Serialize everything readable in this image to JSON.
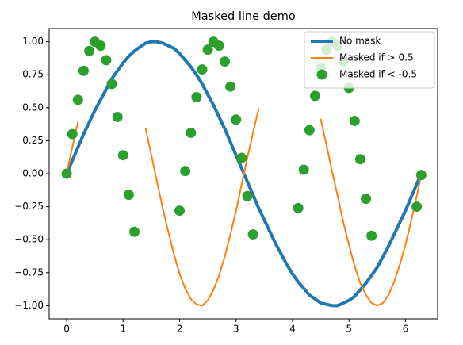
{
  "chart_data": {
    "type": "line",
    "title": "Masked line demo",
    "x": [
      0,
      0.1,
      0.2,
      0.3,
      0.4,
      0.5,
      0.6,
      0.7,
      0.8,
      0.9,
      1.0,
      1.1,
      1.2,
      1.3,
      1.4,
      1.5,
      1.6,
      1.7,
      1.8,
      1.9,
      2.0,
      2.1,
      2.2,
      2.3,
      2.4,
      2.5,
      2.6,
      2.7,
      2.8,
      2.9,
      3.0,
      3.1,
      3.2,
      3.3,
      3.4,
      3.5,
      3.6,
      3.7,
      3.8,
      3.9,
      4.0,
      4.1,
      4.2,
      4.3,
      4.4,
      4.5,
      4.6,
      4.7,
      4.8,
      4.9,
      5.0,
      5.1,
      5.2,
      5.3,
      5.4,
      5.5,
      5.6,
      5.7,
      5.8,
      5.9,
      6.0,
      6.1,
      6.2,
      6.28
    ],
    "series": [
      {
        "name": "No mask",
        "color": "#1f77b4",
        "linewidth": 4,
        "marker": "none",
        "values": [
          0,
          0.1,
          0.2,
          0.3,
          0.39,
          0.48,
          0.56,
          0.64,
          0.72,
          0.78,
          0.84,
          0.89,
          0.93,
          0.96,
          0.99,
          1.0,
          1.0,
          0.99,
          0.97,
          0.95,
          0.91,
          0.86,
          0.81,
          0.75,
          0.68,
          0.6,
          0.52,
          0.43,
          0.34,
          0.24,
          0.14,
          0.04,
          -0.06,
          -0.16,
          -0.26,
          -0.35,
          -0.44,
          -0.53,
          -0.61,
          -0.69,
          -0.76,
          -0.82,
          -0.87,
          -0.92,
          -0.95,
          -0.98,
          -0.99,
          -1.0,
          -1.0,
          -0.98,
          -0.96,
          -0.93,
          -0.88,
          -0.83,
          -0.77,
          -0.71,
          -0.63,
          -0.55,
          -0.46,
          -0.37,
          -0.28,
          -0.18,
          -0.08,
          0
        ]
      },
      {
        "name": "Masked if > 0.5",
        "color": "#ff7f0e",
        "linewidth": 2,
        "marker": "none",
        "values": [
          0,
          0.2,
          0.39,
          null,
          null,
          null,
          null,
          null,
          null,
          null,
          null,
          null,
          null,
          null,
          0.34,
          0.14,
          -0.06,
          -0.26,
          -0.44,
          -0.61,
          -0.76,
          -0.87,
          -0.95,
          -0.99,
          -1.0,
          -0.96,
          -0.88,
          -0.77,
          -0.63,
          -0.46,
          -0.28,
          -0.08,
          0.12,
          0.31,
          0.49,
          null,
          null,
          null,
          null,
          null,
          null,
          null,
          null,
          null,
          null,
          0.41,
          0.22,
          0.02,
          -0.17,
          -0.37,
          -0.54,
          -0.7,
          -0.83,
          -0.92,
          -0.98,
          -1.0,
          -0.98,
          -0.92,
          -0.82,
          -0.69,
          -0.54,
          -0.36,
          -0.17,
          -0.01
        ]
      },
      {
        "name": "Masked if < -0.5",
        "color": "#2ca02c",
        "linewidth": 0,
        "marker": "o",
        "values": [
          0,
          0.3,
          0.56,
          0.78,
          0.93,
          1.0,
          0.97,
          0.86,
          0.68,
          0.43,
          0.14,
          -0.16,
          -0.44,
          null,
          null,
          null,
          null,
          null,
          null,
          null,
          -0.28,
          0.02,
          0.31,
          0.58,
          0.79,
          0.94,
          1.0,
          0.97,
          0.85,
          0.66,
          0.41,
          0.12,
          -0.17,
          -0.46,
          null,
          null,
          null,
          null,
          null,
          null,
          null,
          -0.26,
          0.03,
          0.33,
          0.59,
          0.8,
          0.94,
          1.0,
          0.97,
          0.85,
          0.65,
          0.4,
          0.11,
          -0.19,
          -0.47,
          null,
          null,
          null,
          null,
          null,
          null,
          null,
          -0.25,
          -0.01
        ]
      }
    ],
    "xlim": [
      -0.31,
      6.57
    ],
    "ylim": [
      -1.1,
      1.1
    ],
    "xticks": [
      0,
      1,
      2,
      3,
      4,
      5,
      6
    ],
    "yticks": [
      {
        "value": -1,
        "label": "−1.00"
      },
      {
        "value": -0.75,
        "label": "−0.75"
      },
      {
        "value": -0.5,
        "label": "−0.50"
      },
      {
        "value": -0.25,
        "label": "−0.25"
      },
      {
        "value": 0,
        "label": "0.00"
      },
      {
        "value": 0.25,
        "label": "0.25"
      },
      {
        "value": 0.5,
        "label": "0.50"
      },
      {
        "value": 0.75,
        "label": "0.75"
      },
      {
        "value": 1,
        "label": "1.00"
      }
    ],
    "grid": false,
    "legend": "upper right"
  }
}
